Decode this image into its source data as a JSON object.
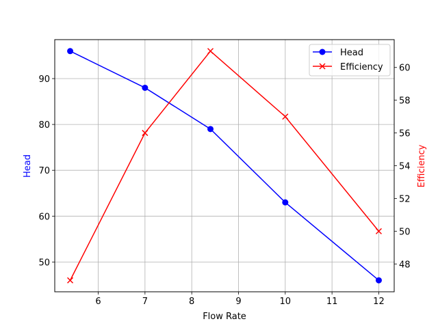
{
  "chart_data": {
    "type": "line",
    "title": "",
    "xlabel": "Flow Rate",
    "ylabel": "Head",
    "y2label": "Efficiency",
    "x": [
      5.4,
      7.0,
      8.4,
      10.0,
      12.0
    ],
    "series": [
      {
        "name": "Head",
        "axis": "left",
        "color": "#0000ff",
        "marker": "circle",
        "values": [
          96,
          88,
          79,
          63,
          46
        ]
      },
      {
        "name": "Efficiency",
        "axis": "right",
        "color": "#ff0000",
        "marker": "x",
        "values": [
          47,
          56,
          61,
          57,
          50
        ]
      }
    ],
    "xticks": [
      6,
      7,
      8,
      9,
      10,
      11,
      12
    ],
    "yticks": [
      50,
      60,
      70,
      80,
      90
    ],
    "y2ticks": [
      48,
      50,
      52,
      54,
      56,
      58,
      60
    ],
    "xlim": [
      5.07,
      12.33
    ],
    "ylim": [
      43.5,
      98.5
    ],
    "y2lim": [
      46.3,
      61.7
    ],
    "grid": true,
    "legend_position": "upper right"
  },
  "axes": {
    "xlabel": "Flow Rate",
    "ylabel": "Head",
    "y2label": "Efficiency",
    "ylabel_color": "#0000ff",
    "y2label_color": "#ff0000"
  },
  "legend": {
    "items": [
      {
        "label": "Head",
        "color": "#0000ff",
        "marker": "circle-icon"
      },
      {
        "label": "Efficiency",
        "color": "#ff0000",
        "marker": "x-icon"
      }
    ]
  }
}
